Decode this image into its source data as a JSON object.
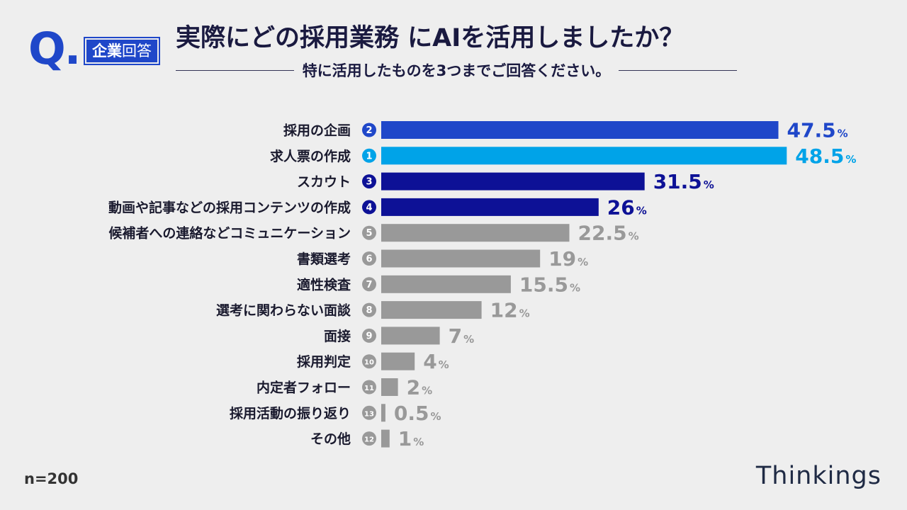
{
  "header": {
    "q_mark": "Q.",
    "badge_strong": "企業",
    "badge_light": "回答",
    "title": "実際にどの採用業務 にAIを活用しましたか？",
    "subtitle": "特に活用したものを3つまでご回答ください。"
  },
  "footer": {
    "sample_size": "n=200",
    "brand": "Thinkings"
  },
  "colors": {
    "accent_blue": "#1f47c9",
    "accent_cyan": "#00a3e8",
    "accent_navy": "#0d1196",
    "neutral_gray": "#999999"
  },
  "chart_data": {
    "type": "bar",
    "orientation": "horizontal",
    "unit": "%",
    "xlim": [
      0,
      50
    ],
    "categories": [
      "採用の企画",
      "求人票の作成",
      "スカウト",
      "動画や記事などの採用コンテンツの作成",
      "候補者への連絡などコミュニケーション",
      "書類選考",
      "適性検査",
      "選考に関わらない面談",
      "面接",
      "採用判定",
      "内定者フォロー",
      "採用活動の振り返り",
      "その他"
    ],
    "ranks": [
      "2",
      "1",
      "3",
      "4",
      "5",
      "6",
      "7",
      "8",
      "9",
      "10",
      "11",
      "13",
      "12"
    ],
    "values": [
      47.5,
      48.5,
      31.5,
      26,
      22.5,
      19,
      15.5,
      12,
      7,
      4,
      2,
      0.5,
      1
    ],
    "value_labels": [
      "47.5",
      "48.5",
      "31.5",
      "26",
      "22.5",
      "19",
      "15.5",
      "12",
      "7",
      "4",
      "2",
      "0.5",
      "1"
    ],
    "bar_colors": [
      "#1f47c9",
      "#00a3e8",
      "#0d1196",
      "#0d1196",
      "#999999",
      "#999999",
      "#999999",
      "#999999",
      "#999999",
      "#999999",
      "#999999",
      "#999999",
      "#999999"
    ],
    "grid": false
  }
}
